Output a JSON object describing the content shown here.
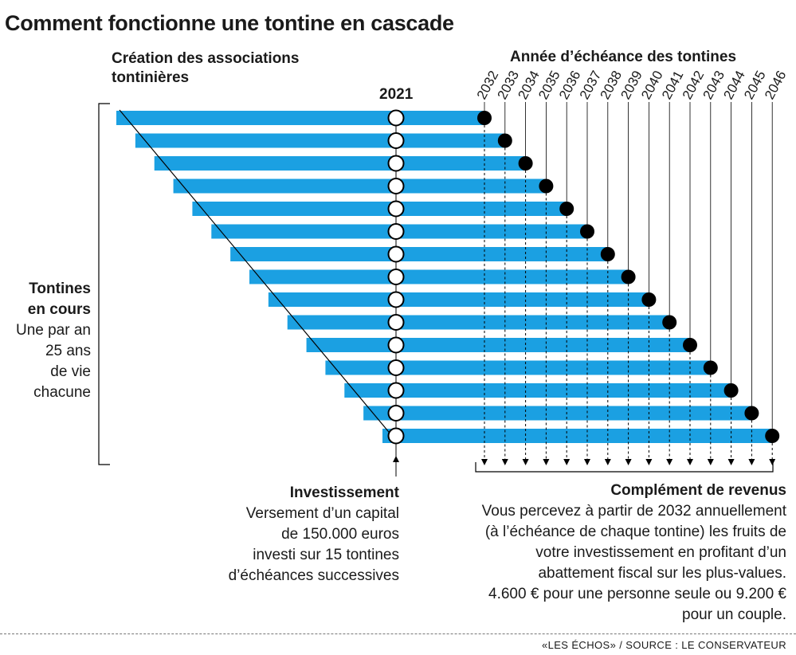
{
  "title": "Comment fonctionne une tontine en cascade",
  "creation_label": [
    "Création des associations",
    "tontinières"
  ],
  "maturity_header": "Année d’échéance des tontines",
  "start_year": "2021",
  "maturity_years": [
    "2032",
    "2033",
    "2034",
    "2035",
    "2036",
    "2037",
    "2038",
    "2039",
    "2040",
    "2041",
    "2042",
    "2043",
    "2044",
    "2045",
    "2046"
  ],
  "left_label": {
    "bold_lines": [
      "Tontines",
      "en cours"
    ],
    "lines": [
      "Une par an",
      "25 ans",
      "de vie",
      "chacune"
    ]
  },
  "investment": {
    "heading": "Investissement",
    "lines": [
      "Versement d’un capital",
      "de 150.000 euros",
      "investi sur 15 tontines",
      "d’échéances successives"
    ]
  },
  "complement": {
    "heading": "Complément de revenus",
    "lines": [
      "Vous percevez à partir de 2032 annuellement",
      "(à l’échéance de chaque tontine) les fruits de",
      "votre investissement en profitant d’un",
      "abattement fiscal sur les plus-values.",
      "4.600 € pour une personne seule ou 9.200 €",
      "pour un couple."
    ]
  },
  "source": "«LES ÉCHOS» / SOURCE : LE CONSERVATEUR",
  "colors": {
    "bar": "#1ba0e2",
    "text": "#1a1a1a",
    "marker": "#000000"
  }
}
